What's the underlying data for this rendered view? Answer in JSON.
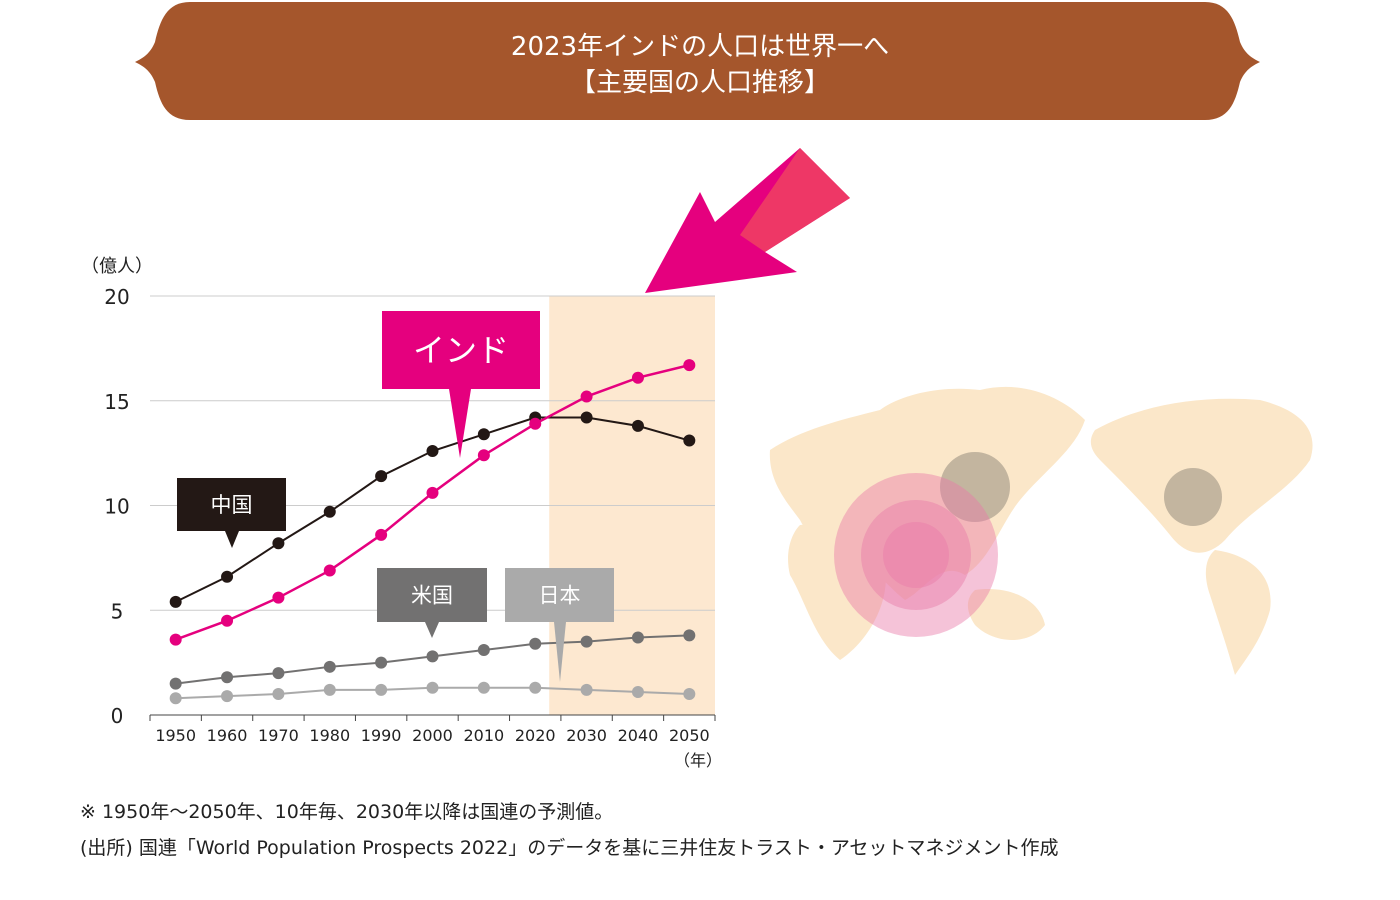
{
  "banner": {
    "line1": "2023年インドの人口は世界一へ",
    "line2": "【主要国の人口推移】",
    "color": "#a5562c"
  },
  "chart_data": {
    "type": "line",
    "ylabel": "（億人）",
    "xlabel": "（年）",
    "ylim": [
      0,
      20
    ],
    "yticks": [
      0,
      5,
      10,
      15,
      20
    ],
    "grid": true,
    "x": [
      1950,
      1960,
      1970,
      1980,
      1990,
      2000,
      2010,
      2020,
      2030,
      2040,
      2050
    ],
    "forecast_from": 2020,
    "forecast_color": "#fde8d0",
    "series": [
      {
        "name": "中国",
        "color": "#231815",
        "label_bg": "#231815",
        "values": [
          5.4,
          6.6,
          8.2,
          9.7,
          11.4,
          12.6,
          13.4,
          14.2,
          14.2,
          13.8,
          13.1
        ]
      },
      {
        "name": "インド",
        "color": "#e5007e",
        "label_bg": "#e5007e",
        "values": [
          3.6,
          4.5,
          5.6,
          6.9,
          8.6,
          10.6,
          12.4,
          13.9,
          15.2,
          16.1,
          16.7
        ]
      },
      {
        "name": "米国",
        "color": "#727171",
        "label_bg": "#727171",
        "values": [
          1.5,
          1.8,
          2.0,
          2.3,
          2.5,
          2.8,
          3.1,
          3.4,
          3.5,
          3.7,
          3.8
        ]
      },
      {
        "name": "日本",
        "color": "#aaaaaa",
        "label_bg": "#aaaaaa",
        "values": [
          0.8,
          0.9,
          1.0,
          1.2,
          1.2,
          1.3,
          1.3,
          1.3,
          1.2,
          1.1,
          1.0
        ]
      }
    ]
  },
  "notes": {
    "note1": "※ 1950年〜2050年、10年毎、2030年以降は国連の予測値。",
    "note2": "(出所) 国連「World Population Prospects 2022」のデータを基に三井住友トラスト・アセットマネジメント作成"
  },
  "map": {
    "land_color": "#fbe7c9",
    "india_color": "#e87aa8",
    "other_color": "#b9ab98"
  },
  "arrow": {
    "color": "#e5007e"
  }
}
